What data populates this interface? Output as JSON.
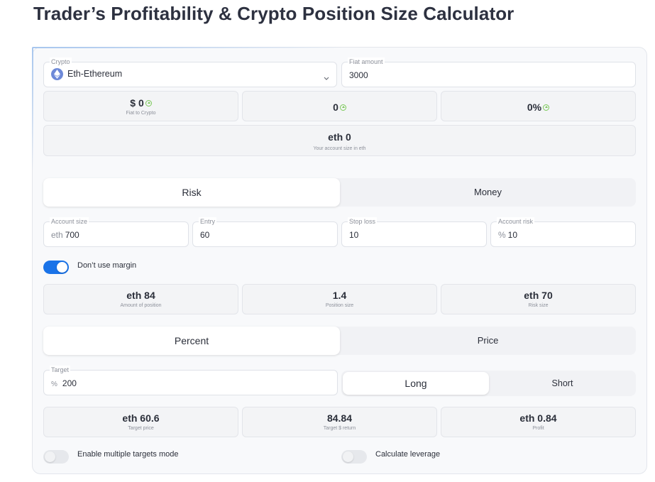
{
  "page": {
    "title": "Trader’s Profitability & Crypto Position Size Calculator"
  },
  "converter": {
    "crypto_label": "Crypto",
    "crypto_value": "Eth-Ethereum",
    "fiat_label": "Fiat amount",
    "fiat_value": "3000",
    "fiat_to_crypto_value": "$ 0",
    "fiat_to_crypto_label": "Fiat to Crypto",
    "middle_value": "0",
    "percent_value": "0%",
    "account_eth_value": "eth 0",
    "account_eth_label": "Your account size in eth"
  },
  "mode_tabs": {
    "risk": "Risk",
    "money": "Money",
    "active": "Risk"
  },
  "inputs": {
    "account_size_label": "Account size",
    "account_size_prefix": "eth",
    "account_size_value": "700",
    "entry_label": "Entry",
    "entry_value": "60",
    "stop_loss_label": "Stop loss",
    "stop_loss_value": "10",
    "account_risk_label": "Account risk",
    "account_risk_prefix": "%",
    "account_risk_value": "10"
  },
  "margin_toggle": {
    "label": "Don’t use margin",
    "on": true
  },
  "position_results": {
    "amount_value": "eth 84",
    "amount_label": "Amount of position",
    "size_value": "1.4",
    "size_label": "Position size",
    "risk_value": "eth 70",
    "risk_label": "Risk size"
  },
  "target_tabs": {
    "percent": "Percent",
    "price": "Price",
    "active": "Percent"
  },
  "target": {
    "label": "Target",
    "prefix": "%",
    "value": "200",
    "long": "Long",
    "short": "Short",
    "active": "Long"
  },
  "target_results": {
    "price_value": "eth 60.6",
    "price_label": "Target price",
    "return_value": "84.84",
    "return_label": "Target $ return",
    "profit_value": "eth 0.84",
    "profit_label": "Profit"
  },
  "bottom_toggles": {
    "multiple_targets_label": "Enable multiple targets mode",
    "multiple_targets_on": false,
    "leverage_label": "Calculate leverage",
    "leverage_on": false
  },
  "colors": {
    "accent": "#1a73e8",
    "up_arrow": "#7cc95a",
    "eth_icon": "#6d89d8"
  }
}
